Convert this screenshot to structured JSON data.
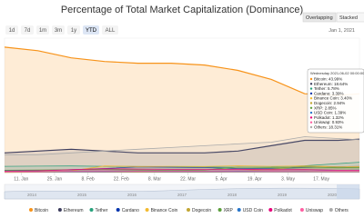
{
  "chart_data": {
    "type": "line",
    "title": "Percentage of Total Market Capitalization (Dominance)",
    "range_buttons": [
      "1d",
      "7d",
      "1m",
      "3m",
      "1y",
      "YTD",
      "ALL"
    ],
    "mode_buttons": [
      "Overlapping",
      "Stacked"
    ],
    "date_input": "Jan 1, 2021",
    "x": [
      "2021-01-04",
      "2021-01-18",
      "2021-02-01",
      "2021-02-15",
      "2021-03-01",
      "2021-03-15",
      "2021-03-29",
      "2021-04-12",
      "2021-04-26",
      "2021-05-10",
      "2021-05-24",
      "2021-06-02"
    ],
    "xlim": [
      "2021-01-04",
      "2021-06-02"
    ],
    "xticks": [
      {
        "value": "2021-01-11",
        "label": "11. Jan"
      },
      {
        "value": "2021-01-25",
        "label": "25. Jan"
      },
      {
        "value": "2021-02-08",
        "label": "8. Feb"
      },
      {
        "value": "2021-02-22",
        "label": "22. Feb"
      },
      {
        "value": "2021-03-08",
        "label": "8. Mar"
      },
      {
        "value": "2021-03-22",
        "label": "22. Mar"
      },
      {
        "value": "2021-04-05",
        "label": "5. Apr"
      },
      {
        "value": "2021-04-19",
        "label": "19. Apr"
      },
      {
        "value": "2021-05-03",
        "label": "3. May"
      },
      {
        "value": "2021-05-17",
        "label": "17. May"
      }
    ],
    "ylim": [
      0,
      75
    ],
    "navigator_labels": [
      "2014",
      "2015",
      "2016",
      "2017",
      "2018",
      "2019",
      "2020"
    ],
    "series": [
      {
        "name": "Bitcoin",
        "color": "#f7931a",
        "values": [
          70,
          68,
          64,
          62,
          61,
          61,
          60,
          57,
          52,
          44,
          43,
          43.99
        ]
      },
      {
        "name": "Ethereum",
        "color": "#3c3c5d",
        "values": [
          11,
          12,
          13,
          12,
          11,
          11,
          11,
          12,
          15,
          18,
          18,
          18.64
        ]
      },
      {
        "name": "Tether",
        "color": "#26a17b",
        "values": [
          3.5,
          3.6,
          3.7,
          3.5,
          3.4,
          3.3,
          3.1,
          3,
          3.1,
          3.8,
          5,
          5.78
        ]
      },
      {
        "name": "Cardano",
        "color": "#0033ad",
        "values": [
          1,
          1.1,
          1.6,
          2.3,
          3.2,
          3,
          2.8,
          2.3,
          2.2,
          2.8,
          3.3,
          3.39
        ]
      },
      {
        "name": "Binance Coin",
        "color": "#f3ba2f",
        "values": [
          0.6,
          0.6,
          0.9,
          3.7,
          3.4,
          3.5,
          3.4,
          3.8,
          3.5,
          3.7,
          3.3,
          3.4
        ]
      },
      {
        "name": "Dogecoin",
        "color": "#c2a633",
        "values": [
          0.1,
          0.2,
          0.6,
          0.4,
          0.3,
          0.3,
          0.3,
          0.8,
          1.8,
          3.6,
          2.8,
          2.94
        ]
      },
      {
        "name": "XRP",
        "color": "#5a9e3a",
        "values": [
          1.3,
          1.4,
          1.6,
          1.7,
          1.4,
          1.2,
          1.4,
          3.1,
          2.8,
          3.1,
          2.7,
          2.85
        ]
      },
      {
        "name": "USD Coin",
        "color": "#2775ca",
        "values": [
          0.5,
          0.6,
          0.6,
          0.6,
          0.7,
          0.6,
          0.6,
          0.7,
          0.8,
          0.9,
          1.3,
          1.39
        ]
      },
      {
        "name": "Polkadot",
        "color": "#e6007a",
        "values": [
          0.8,
          1,
          1.6,
          2.2,
          2,
          1.8,
          1.7,
          1.9,
          1.6,
          1.7,
          1.3,
          1.32
        ]
      },
      {
        "name": "Uniswap",
        "color": "#ff5fa2",
        "values": [
          0.4,
          0.5,
          0.8,
          0.9,
          0.8,
          0.8,
          0.8,
          1,
          0.9,
          1,
          0.9,
          0.93
        ]
      },
      {
        "name": "Others",
        "color": "#aaaaaa",
        "values": [
          10,
          10,
          11,
          12,
          13,
          14,
          15,
          16,
          17,
          20,
          19,
          18.31
        ]
      }
    ],
    "tooltip": {
      "title": "Wednesday 2021-06-02 00:00:00",
      "rows": [
        "Bitcoin: 43.99%",
        "Ethereum: 18.64%",
        "Tether: 5.78%",
        "Cardano: 3.39%",
        "Binance Coin: 3.40%",
        "Dogecoin: 2.94%",
        "XRP: 2.85%",
        "USD Coin: 1.39%",
        "Polkadot: 1.32%",
        "Uniswap: 0.93%",
        "Others: 18.31%"
      ]
    }
  }
}
